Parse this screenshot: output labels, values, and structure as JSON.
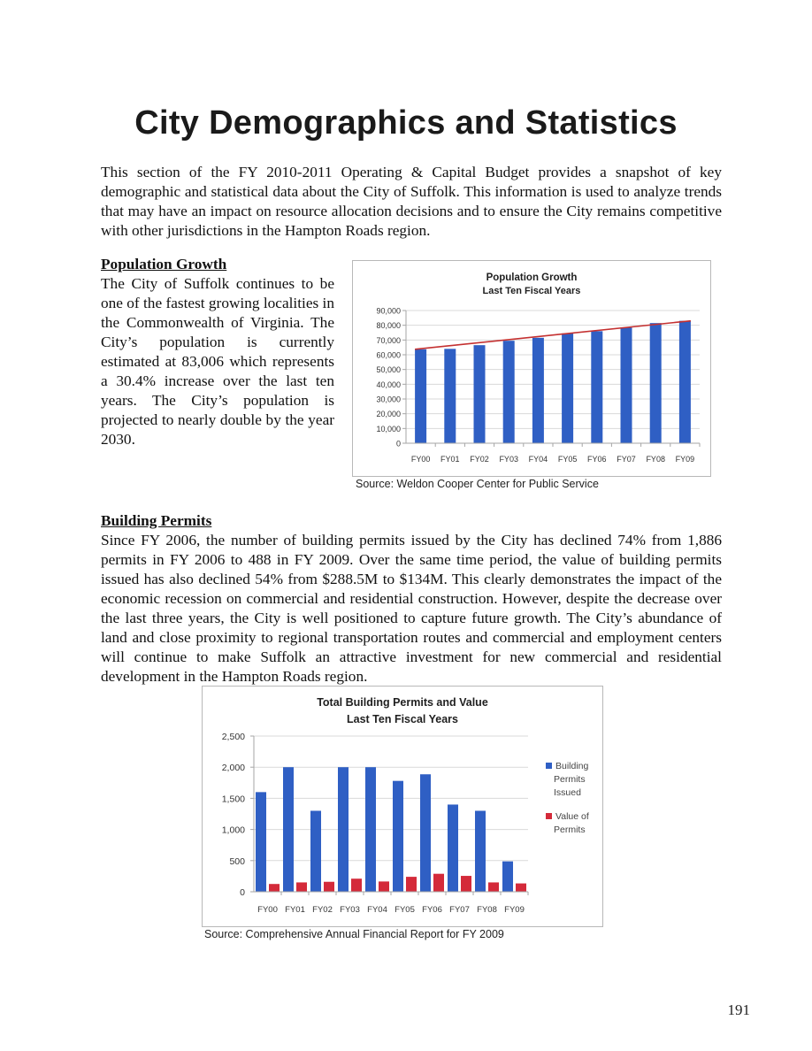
{
  "page_title": "City Demographics and Statistics",
  "intro_text": "This section of the FY 2010-2011 Operating & Capital Budget provides a snapshot of key demographic and statistical data about the City of Suffolk. This information is used to analyze trends that may have an impact on resource allocation decisions and to ensure the City remains competitive with other jurisdictions in the Hampton Roads region.",
  "population": {
    "heading": "Population Growth",
    "text": "The City of Suffolk continues to be one of the fastest growing localities in the Commonwealth of Virginia. The City’s population is currently estimated at 83,006 which represents a 30.4% increase over the last ten years. The City’s population is projected to nearly double by the year 2030.",
    "source": "Source: Weldon Cooper Center for Public Service"
  },
  "building_permits": {
    "heading": "Building Permits",
    "text": "Since FY 2006, the number of building permits issued by the City has declined 74% from 1,886 permits in FY 2006 to 488 in FY 2009. Over the same time period, the value of building permits issued has also declined 54% from $288.5M to $134M. This clearly demonstrates the impact of the economic recession on commercial and residential construction. However, despite the decrease over the last three years, the City is well positioned to capture future growth. The City’s abundance of land and close proximity to regional transportation routes and commercial and employment centers will continue to make Suffolk an attractive investment for new commercial and residential development in the Hampton Roads region.",
    "source": "Source: Comprehensive Annual Financial Report for FY 2009"
  },
  "page_number": "191",
  "colors": {
    "bar_blue": "#2f5fc4",
    "bar_red": "#d42a3a",
    "trend_red": "#c43030",
    "grid": "#d9d9d9",
    "axis": "#a6a6a6"
  },
  "chart_data": [
    {
      "type": "bar",
      "title": "Population Growth",
      "subtitle": "Last Ten Fiscal Years",
      "categories": [
        "FY00",
        "FY01",
        "FY02",
        "FY03",
        "FY04",
        "FY05",
        "FY06",
        "FY07",
        "FY08",
        "FY09"
      ],
      "series": [
        {
          "values": [
            63700,
            64000,
            66500,
            69500,
            71500,
            74500,
            76000,
            78500,
            81500,
            83006
          ]
        }
      ],
      "trendline": {
        "from": 63700,
        "to": 83006
      },
      "ylim": [
        0,
        90000
      ],
      "yticks": [
        0,
        10000,
        20000,
        30000,
        40000,
        50000,
        60000,
        70000,
        80000,
        90000
      ],
      "ytick_labels": [
        "0",
        "10,000",
        "20,000",
        "30,000",
        "40,000",
        "50,000",
        "60,000",
        "70,000",
        "80,000",
        "90,000"
      ],
      "grid": true,
      "legend": "none"
    },
    {
      "type": "bar",
      "title": "Total Building Permits and Value",
      "subtitle": "Last Ten Fiscal Years",
      "categories": [
        "FY00",
        "FY01",
        "FY02",
        "FY03",
        "FY04",
        "FY05",
        "FY06",
        "FY07",
        "FY08",
        "FY09"
      ],
      "series": [
        {
          "name": "Building Permits Issued",
          "color": "#2f5fc4",
          "values": [
            1600,
            2000,
            1300,
            2000,
            2000,
            1780,
            1886,
            1400,
            1300,
            488
          ]
        },
        {
          "name": "Value of Permits",
          "color": "#d42a3a",
          "values": [
            125,
            150,
            160,
            210,
            165,
            240,
            288.5,
            255,
            150,
            134
          ]
        }
      ],
      "ylim": [
        0,
        2500
      ],
      "yticks": [
        0,
        500,
        1000,
        1500,
        2000,
        2500
      ],
      "ytick_labels": [
        "0",
        "500",
        "1,000",
        "1,500",
        "2,000",
        "2,500"
      ],
      "grid": true,
      "legend": "right"
    }
  ]
}
